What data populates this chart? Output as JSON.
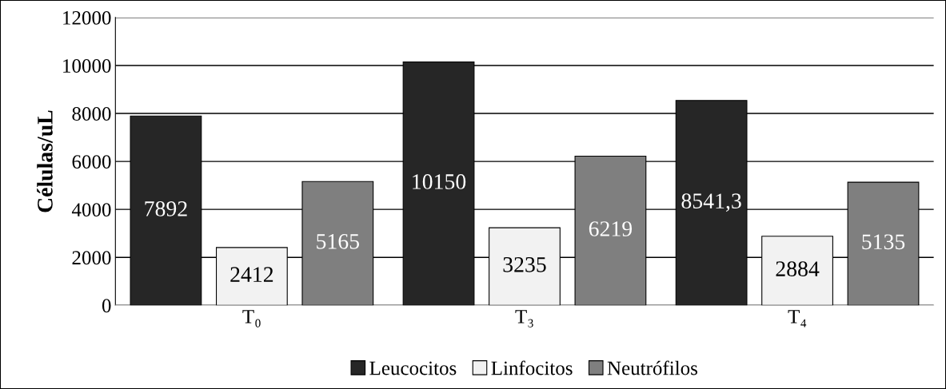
{
  "chart_data": {
    "type": "bar",
    "ylabel": "Células/uL",
    "categories": [
      "T₀",
      "T₃",
      "T₄"
    ],
    "series": [
      {
        "name": "Leucocitos",
        "color": "#262626",
        "values": [
          7892,
          10150,
          8541.3
        ],
        "value_labels": [
          "7892",
          "10150",
          "8541,3"
        ]
      },
      {
        "name": "Linfocitos",
        "color": "#f2f2f2",
        "values": [
          2412,
          3235,
          2884
        ],
        "value_labels": [
          "2412",
          "3235",
          "2884"
        ]
      },
      {
        "name": "Neutrófilos",
        "color": "#7f7f7f",
        "values": [
          5165,
          6219,
          5135
        ],
        "value_labels": [
          "5165",
          "6219",
          "5135"
        ]
      }
    ],
    "ylim": [
      0,
      12000
    ],
    "yticks": [
      0,
      2000,
      4000,
      6000,
      8000,
      10000,
      12000
    ],
    "grid": "y",
    "legend": "bottom"
  }
}
